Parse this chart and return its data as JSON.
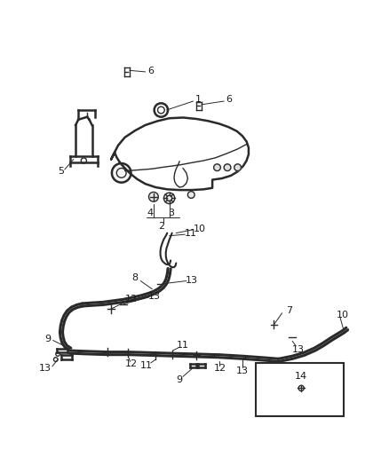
{
  "bg_color": "#ffffff",
  "line_color": "#2a2a2a",
  "fig_width": 4.38,
  "fig_height": 5.33,
  "dpi": 100,
  "lw_main": 1.8,
  "lw_thin": 1.0,
  "lw_cable": 2.2
}
